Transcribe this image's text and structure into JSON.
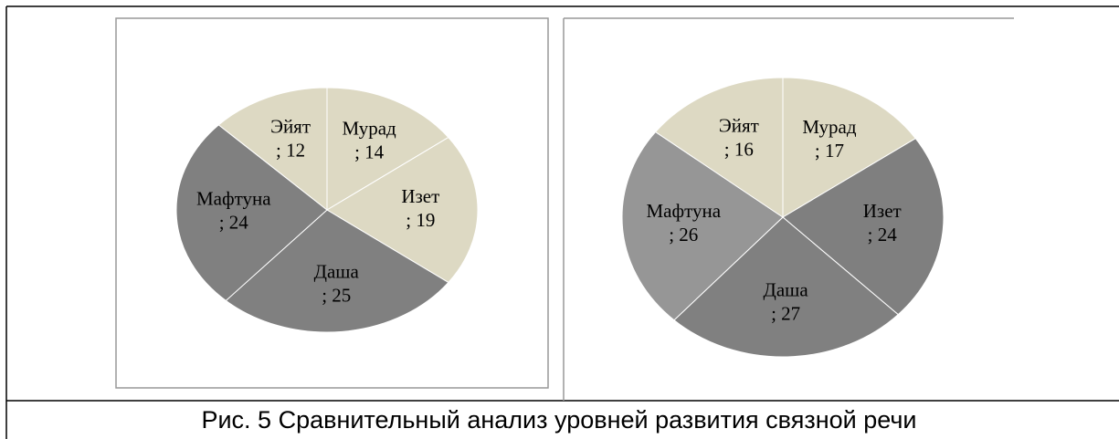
{
  "caption": "Рис. 5 Сравнительный анализ уровней развития связной речи",
  "chart_data": [
    {
      "type": "pie",
      "categories": [
        "Мурад",
        "Изет",
        "Даша",
        "Мафтуна",
        "Эйят"
      ],
      "values": [
        14,
        19,
        25,
        24,
        12
      ],
      "value_labels": [
        "; 14",
        "; 19",
        "; 25",
        "; 24",
        "; 12"
      ],
      "colors": [
        "#ddd9c3",
        "#ddd9c3",
        "#808080",
        "#808080",
        "#ddd9c3"
      ]
    },
    {
      "type": "pie",
      "categories": [
        "Мурад",
        "Изет",
        "Даша",
        "Мафтуна",
        "Эйят"
      ],
      "values": [
        17,
        24,
        27,
        26,
        16
      ],
      "value_labels": [
        "; 17",
        "; 24",
        "; 27",
        "; 26",
        "; 16"
      ],
      "colors": [
        "#ddd9c3",
        "#7f7f7f",
        "#808080",
        "#969696",
        "#ddd9c3"
      ]
    }
  ]
}
